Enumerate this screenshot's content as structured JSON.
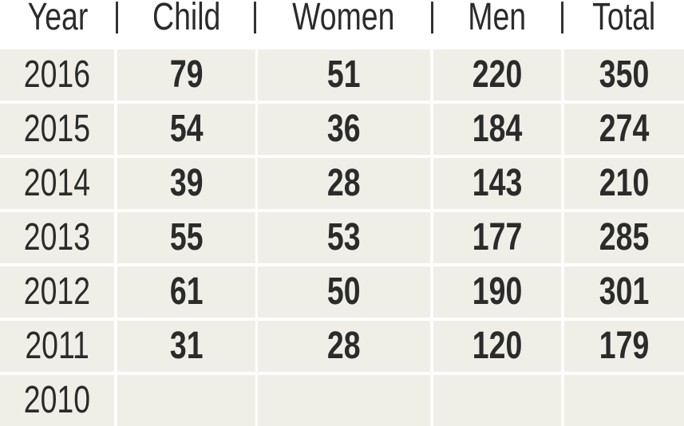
{
  "table": {
    "headers": [
      "Year",
      "Child",
      "Women",
      "Men",
      "Total"
    ],
    "rows": [
      [
        "2016",
        "79",
        "51",
        "220",
        "350"
      ],
      [
        "2015",
        "54",
        "36",
        "184",
        "274"
      ],
      [
        "2014",
        "39",
        "28",
        "143",
        "210"
      ],
      [
        "2013",
        "55",
        "53",
        "177",
        "285"
      ],
      [
        "2012",
        "61",
        "50",
        "190",
        "301"
      ],
      [
        "2011",
        "31",
        "28",
        "120",
        "179"
      ],
      [
        "2010",
        "",
        "",
        "",
        ""
      ]
    ]
  },
  "colors": {
    "cell_background": "#efeee7",
    "text": "#2b2b2b"
  }
}
